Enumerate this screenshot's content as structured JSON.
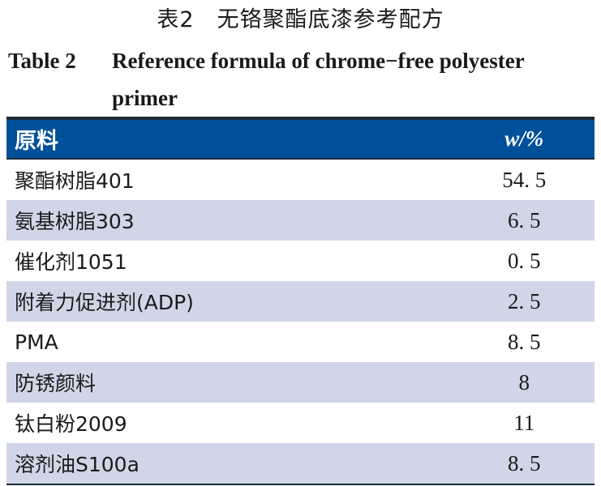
{
  "title_cn": "表2　无铬聚酯底漆参考配方",
  "title_en_label": "Table 2",
  "title_en_text": "Reference formula of chrome−free polyester primer",
  "columns": [
    "原料",
    "w/%"
  ],
  "rows": [
    {
      "name": "聚酯树脂401",
      "value": "54. 5"
    },
    {
      "name": "氨基树脂303",
      "value": "6. 5"
    },
    {
      "name": "催化剂1051",
      "value": "0. 5"
    },
    {
      "name": "附着力促进剂(ADP)",
      "value": "2. 5"
    },
    {
      "name": "PMA",
      "value": "8. 5"
    },
    {
      "name": "防锈颜料",
      "value": "8"
    },
    {
      "name": "钛白粉2009",
      "value": "11"
    },
    {
      "name": "溶剂油S100a",
      "value": "8. 5"
    }
  ],
  "colors": {
    "header": "#00509a",
    "stripe": "#d0d6e8"
  }
}
